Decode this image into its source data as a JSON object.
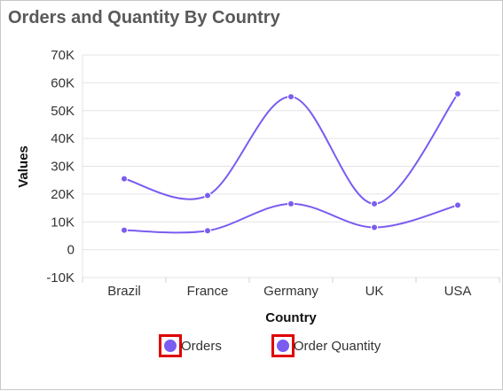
{
  "title": "Orders and Quantity By Country",
  "chart_data": {
    "type": "line",
    "curve": "spline",
    "categories": [
      "Brazil",
      "France",
      "Germany",
      "UK",
      "USA"
    ],
    "series": [
      {
        "name": "Orders",
        "values": [
          7000,
          6800,
          16500,
          8000,
          16000
        ],
        "color": "#7b5cf0"
      },
      {
        "name": "Order Quantity",
        "values": [
          25500,
          19500,
          55000,
          16500,
          56000
        ],
        "color": "#7b5cf0"
      }
    ],
    "xlabel": "Country",
    "ylabel": "Values",
    "ylim": [
      -10000,
      70000
    ],
    "yticks": [
      "-10K",
      "0",
      "10K",
      "20K",
      "30K",
      "40K",
      "50K",
      "60K",
      "70K"
    ],
    "ytick_values": [
      -10000,
      0,
      10000,
      20000,
      30000,
      40000,
      50000,
      60000,
      70000
    ],
    "grid": true,
    "legend_position": "bottom"
  }
}
